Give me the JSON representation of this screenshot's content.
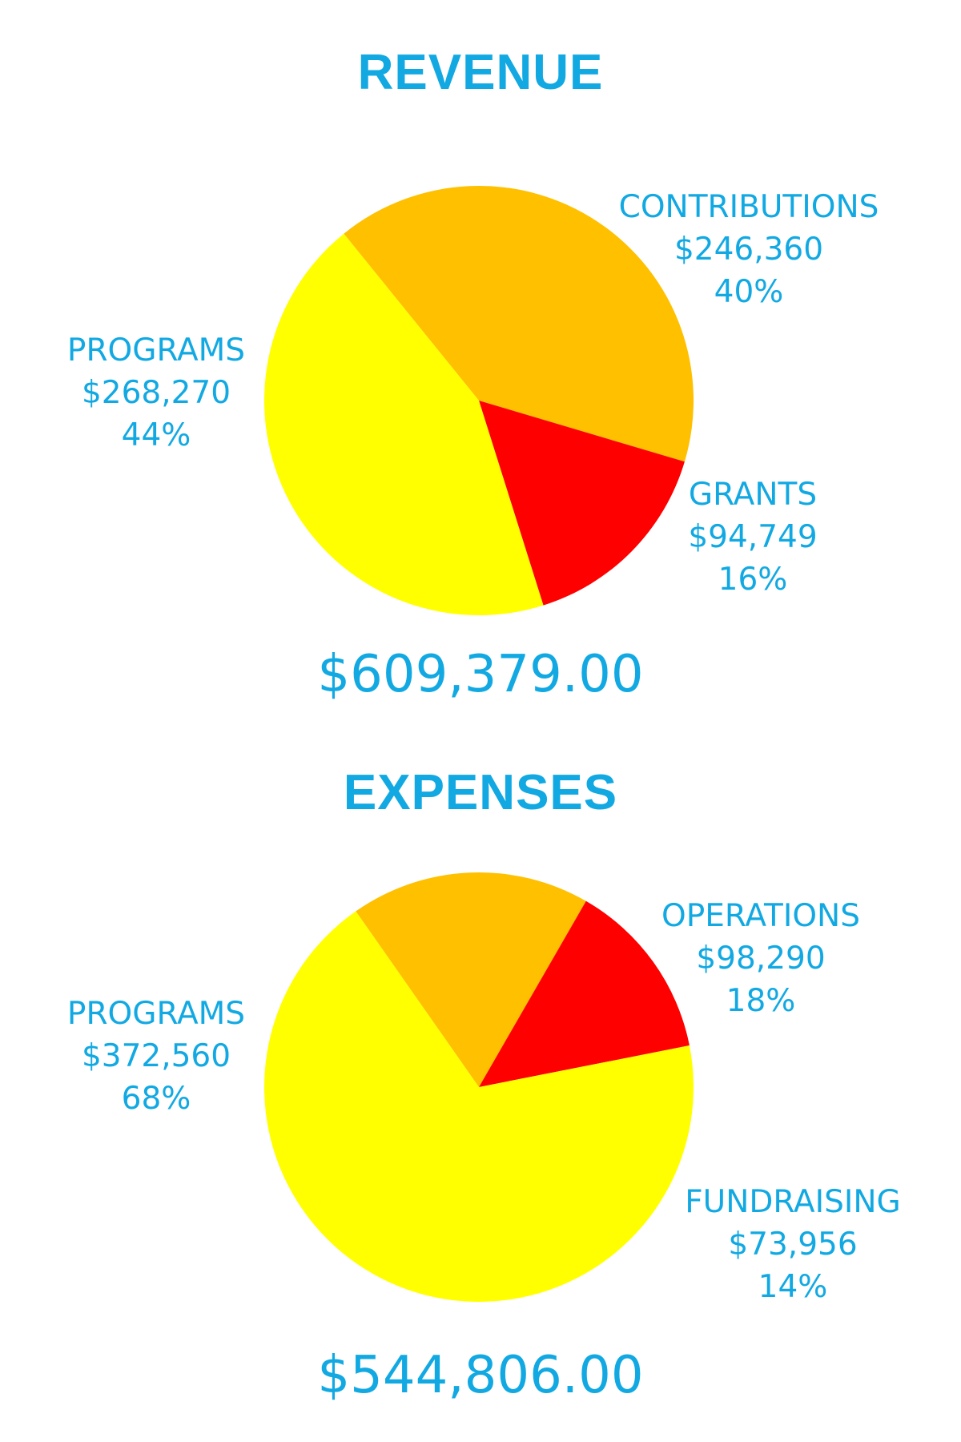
{
  "chart_data": [
    {
      "type": "pie",
      "title": "REVENUE",
      "total": "$609,379.00",
      "slices": [
        {
          "label": "CONTRIBUTIONS",
          "value": 246360,
          "amount": "$246,360",
          "percent": "40%",
          "color": "#ffc000"
        },
        {
          "label": "GRANTS",
          "value": 94749,
          "amount": "$94,749",
          "percent": "16%",
          "color": "#ff0000"
        },
        {
          "label": "PROGRAMS",
          "value": 268270,
          "amount": "$268,270",
          "percent": "44%",
          "color": "#ffff00"
        }
      ]
    },
    {
      "type": "pie",
      "title": "EXPENSES",
      "total": "$544,806.00",
      "slices": [
        {
          "label": "OPERATIONS",
          "value": 98290,
          "amount": "$98,290",
          "percent": "18%",
          "color": "#ffc000"
        },
        {
          "label": "FUNDRAISING",
          "value": 73956,
          "amount": "$73,956",
          "percent": "14%",
          "color": "#ff0000"
        },
        {
          "label": "PROGRAMS",
          "value": 372560,
          "amount": "$372,560",
          "percent": "68%",
          "color": "#ffff00"
        }
      ]
    }
  ],
  "text_color": "#12a9e3"
}
